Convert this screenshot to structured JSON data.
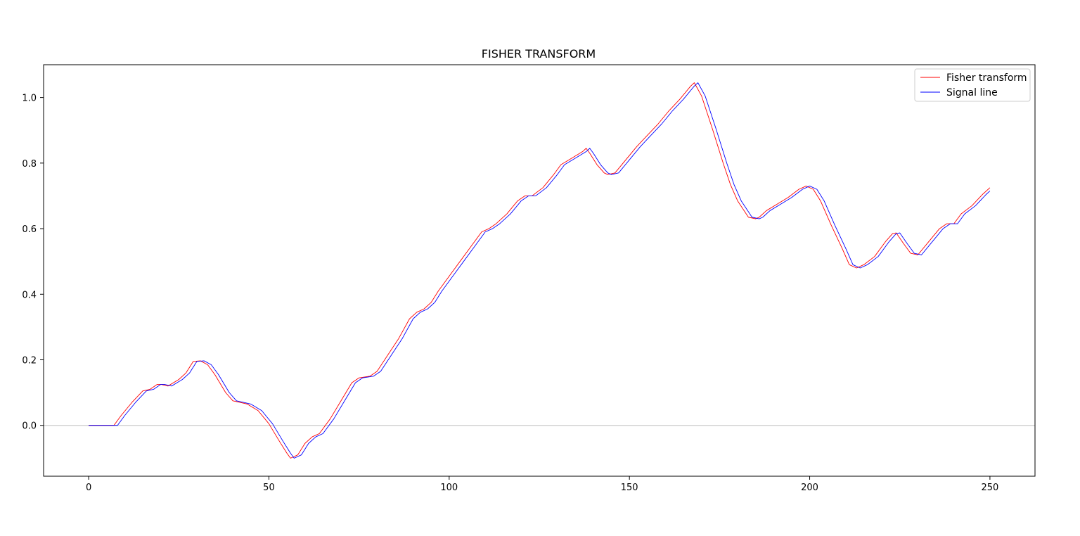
{
  "chart_data": {
    "type": "line",
    "title": "FISHER TRANSFORM",
    "xlabel": "",
    "ylabel": "",
    "xlim": [
      -12.5,
      262.5
    ],
    "ylim": [
      -0.155,
      1.1
    ],
    "xticks": [
      0,
      50,
      100,
      150,
      200,
      250
    ],
    "xtick_labels": [
      "0",
      "50",
      "100",
      "150",
      "200",
      "250"
    ],
    "yticks": [
      0.0,
      0.2,
      0.4,
      0.6,
      0.8,
      1.0
    ],
    "ytick_labels": [
      "0.0",
      "0.2",
      "0.4",
      "0.6",
      "0.8",
      "1.0"
    ],
    "grid": false,
    "legend_position": "top-right",
    "reference_line": {
      "y": 0.0,
      "color": "#d3d3d3"
    },
    "series": [
      {
        "name": "Fisher transform",
        "color": "#ff0000",
        "x": [
          0,
          7,
          9,
          12,
          15,
          17,
          19,
          20,
          22,
          25,
          27,
          29,
          31,
          33,
          35,
          38,
          40,
          42,
          44,
          47,
          50,
          53,
          55,
          56,
          58,
          60,
          62,
          64,
          67,
          70,
          73,
          75,
          78,
          80,
          83,
          86,
          89,
          91,
          93,
          95,
          97,
          100,
          103,
          106,
          109,
          111,
          113,
          116,
          119,
          121,
          123,
          126,
          129,
          131,
          134,
          137,
          138,
          139,
          141,
          143,
          144,
          146,
          149,
          152,
          155,
          158,
          161,
          164,
          167,
          168,
          170,
          173,
          176,
          178,
          180,
          183,
          185,
          186,
          188,
          191,
          194,
          197,
          199,
          201,
          203,
          206,
          209,
          211,
          213,
          215,
          218,
          221,
          223,
          224,
          226,
          228,
          230,
          233,
          236,
          238,
          240,
          242,
          245,
          248,
          250
        ],
        "y": [
          0.0,
          0.0,
          0.03,
          0.07,
          0.105,
          0.11,
          0.125,
          0.125,
          0.12,
          0.14,
          0.16,
          0.195,
          0.197,
          0.185,
          0.155,
          0.1,
          0.075,
          0.07,
          0.065,
          0.045,
          0.005,
          -0.05,
          -0.085,
          -0.1,
          -0.09,
          -0.055,
          -0.035,
          -0.025,
          0.02,
          0.075,
          0.13,
          0.145,
          0.15,
          0.165,
          0.215,
          0.265,
          0.325,
          0.345,
          0.355,
          0.375,
          0.41,
          0.455,
          0.5,
          0.545,
          0.59,
          0.6,
          0.615,
          0.645,
          0.685,
          0.7,
          0.7,
          0.725,
          0.765,
          0.795,
          0.815,
          0.835,
          0.845,
          0.83,
          0.795,
          0.77,
          0.765,
          0.77,
          0.81,
          0.85,
          0.885,
          0.92,
          0.96,
          0.995,
          1.035,
          1.045,
          1.005,
          0.905,
          0.8,
          0.735,
          0.685,
          0.635,
          0.63,
          0.635,
          0.655,
          0.675,
          0.695,
          0.72,
          0.73,
          0.72,
          0.685,
          0.61,
          0.54,
          0.49,
          0.48,
          0.49,
          0.515,
          0.56,
          0.585,
          0.587,
          0.555,
          0.525,
          0.52,
          0.56,
          0.6,
          0.615,
          0.615,
          0.645,
          0.67,
          0.705,
          0.725
        ]
      },
      {
        "name": "Signal line",
        "color": "#0000ff",
        "x": [
          0,
          8,
          10,
          13,
          16,
          18,
          20,
          21,
          23,
          26,
          28,
          30,
          32,
          34,
          36,
          39,
          41,
          43,
          45,
          48,
          51,
          54,
          56,
          57,
          59,
          61,
          63,
          65,
          68,
          71,
          74,
          76,
          79,
          81,
          84,
          87,
          90,
          92,
          94,
          96,
          98,
          101,
          104,
          107,
          110,
          112,
          114,
          117,
          120,
          122,
          124,
          127,
          130,
          132,
          135,
          138,
          139,
          140,
          142,
          144,
          145,
          147,
          150,
          153,
          156,
          159,
          162,
          165,
          168,
          169,
          171,
          174,
          177,
          179,
          181,
          184,
          186,
          187,
          189,
          192,
          195,
          198,
          200,
          202,
          204,
          207,
          210,
          212,
          214,
          216,
          219,
          222,
          224,
          225,
          227,
          229,
          231,
          234,
          237,
          239,
          241,
          243,
          246,
          249,
          250
        ],
        "y": [
          0.0,
          0.0,
          0.03,
          0.07,
          0.105,
          0.11,
          0.125,
          0.125,
          0.12,
          0.14,
          0.16,
          0.195,
          0.197,
          0.185,
          0.155,
          0.1,
          0.075,
          0.07,
          0.065,
          0.045,
          0.005,
          -0.05,
          -0.085,
          -0.1,
          -0.09,
          -0.055,
          -0.035,
          -0.025,
          0.02,
          0.075,
          0.13,
          0.145,
          0.15,
          0.165,
          0.215,
          0.265,
          0.325,
          0.345,
          0.355,
          0.375,
          0.41,
          0.455,
          0.5,
          0.545,
          0.59,
          0.6,
          0.615,
          0.645,
          0.685,
          0.7,
          0.7,
          0.725,
          0.765,
          0.795,
          0.815,
          0.835,
          0.845,
          0.83,
          0.795,
          0.77,
          0.765,
          0.77,
          0.81,
          0.85,
          0.885,
          0.92,
          0.96,
          0.995,
          1.035,
          1.045,
          1.005,
          0.905,
          0.8,
          0.735,
          0.685,
          0.635,
          0.63,
          0.635,
          0.655,
          0.675,
          0.695,
          0.72,
          0.73,
          0.72,
          0.685,
          0.61,
          0.54,
          0.49,
          0.48,
          0.49,
          0.515,
          0.56,
          0.585,
          0.587,
          0.555,
          0.525,
          0.52,
          0.56,
          0.6,
          0.615,
          0.615,
          0.645,
          0.67,
          0.705,
          0.715
        ]
      }
    ]
  }
}
